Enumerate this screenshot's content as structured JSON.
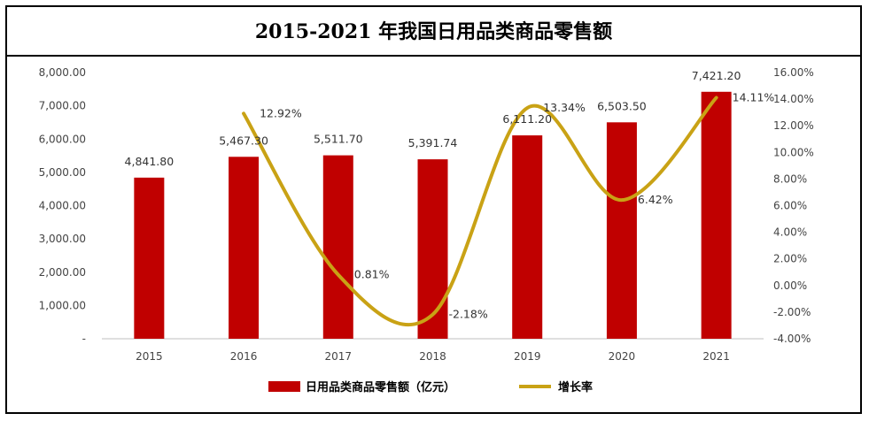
{
  "title": "2015-2021 年我国日用品类商品零售额",
  "chart_data": {
    "type": "bar",
    "categories": [
      "2015",
      "2016",
      "2017",
      "2018",
      "2019",
      "2020",
      "2021"
    ],
    "series": [
      {
        "name": "日用品类商品零售额（亿元）",
        "type": "bar",
        "axis": "left",
        "color": "#c00000",
        "values": [
          4841.8,
          5467.3,
          5511.7,
          5391.74,
          6111.2,
          6503.5,
          7421.2
        ],
        "labels": [
          "4,841.80",
          "5,467.30",
          "5,511.70",
          "5,391.74",
          "6,111.20",
          "6,503.50",
          "7,421.20"
        ]
      },
      {
        "name": "增长率",
        "type": "line",
        "smooth": true,
        "axis": "right",
        "color": "#c9a215",
        "values": [
          null,
          12.92,
          0.81,
          -2.18,
          13.34,
          6.42,
          14.11
        ],
        "labels": [
          "",
          "12.92%",
          "0.81%",
          "-2.18%",
          "13.34%",
          "6.42%",
          "14.11%"
        ]
      }
    ],
    "y_left": {
      "min": 0,
      "max": 8000,
      "ticks": [
        0,
        1000,
        2000,
        3000,
        4000,
        5000,
        6000,
        7000,
        8000
      ],
      "tick_labels": [
        "-",
        "1,000.00",
        "2,000.00",
        "3,000.00",
        "4,000.00",
        "5,000.00",
        "6,000.00",
        "7,000.00",
        "8,000.00"
      ]
    },
    "y_right": {
      "min": -4,
      "max": 16,
      "ticks": [
        -4,
        -2,
        0,
        2,
        4,
        6,
        8,
        10,
        12,
        14,
        16
      ],
      "tick_labels": [
        "-4.00%",
        "-2.00%",
        "0.00%",
        "2.00%",
        "4.00%",
        "6.00%",
        "8.00%",
        "10.00%",
        "12.00%",
        "14.00%",
        "16.00%"
      ]
    },
    "grid": false,
    "legend_position": "bottom"
  }
}
